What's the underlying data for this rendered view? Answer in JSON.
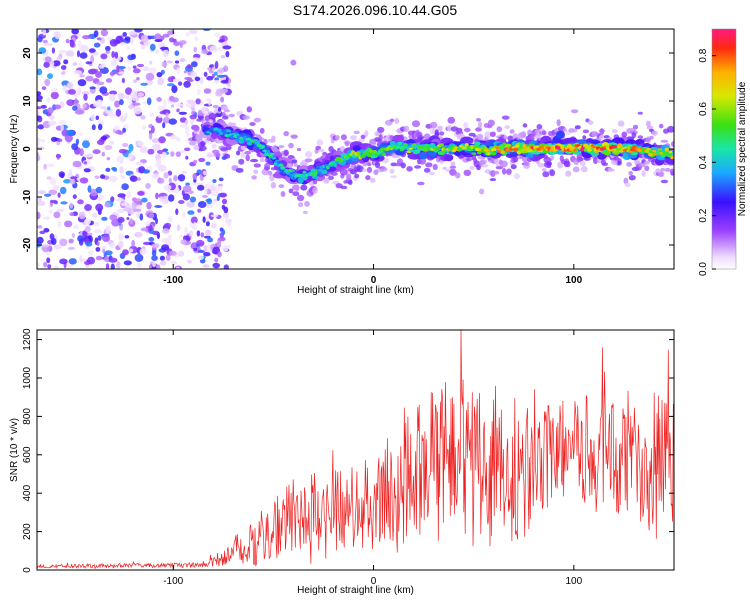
{
  "title": "S174.2026.096.10.44.G05",
  "colors": {
    "snr_line": "#ee2222",
    "axis": "#000000",
    "background": "#ffffff"
  },
  "chart_data": [
    {
      "type": "heatmap",
      "xlabel": "Height of straight line (km)",
      "ylabel": "Frequency (Hz)",
      "xlim": [
        -168,
        150
      ],
      "ylim": [
        -25,
        25
      ],
      "xticks": [
        -100,
        0,
        100
      ],
      "xtick_labels": [
        "-100",
        "0",
        "100"
      ],
      "yticks": [
        -20,
        -10,
        0,
        10,
        20
      ],
      "ytick_labels": [
        "-20",
        "-10",
        "0",
        "10",
        "20"
      ],
      "grid": false,
      "ridge": {
        "description_points_x": [
          -80,
          -65,
          -55,
          -45,
          -38,
          -30,
          -20,
          -10,
          0,
          10,
          30,
          50,
          70,
          90,
          110,
          130,
          148
        ],
        "frequency_y": [
          4,
          2.5,
          0,
          -4,
          -6,
          -5,
          -3,
          -1,
          -1,
          0.5,
          0,
          0,
          0,
          0.2,
          0.3,
          0,
          -1
        ],
        "peak_amplitude": [
          0.35,
          0.45,
          0.45,
          0.4,
          0.45,
          0.45,
          0.45,
          0.6,
          0.55,
          0.55,
          0.55,
          0.6,
          0.7,
          0.8,
          0.85,
          0.7,
          0.6
        ]
      },
      "noise_region_x": [
        -168,
        -80
      ],
      "colorbar": {
        "label": "Normalized spectral amplitude",
        "range": [
          0,
          0.9
        ],
        "ticks": [
          0,
          0.2,
          0.4,
          0.6,
          0.8
        ],
        "tick_labels": [
          "0.0",
          "0.2",
          "0.4",
          "0.6",
          "0.8"
        ]
      }
    },
    {
      "type": "line",
      "xlabel": "Height of straight line (km)",
      "ylabel": "SNR (10 * v/v)",
      "xlim": [
        -168,
        150
      ],
      "ylim": [
        0,
        1250
      ],
      "xticks": [
        -100,
        0,
        100
      ],
      "xtick_labels": [
        "-100",
        "0",
        "100"
      ],
      "yticks": [
        0,
        200,
        400,
        600,
        800,
        1000,
        1200
      ],
      "ytick_labels": [
        "0",
        "200",
        "400",
        "600",
        "800",
        "1000",
        "1200"
      ],
      "grid": false,
      "series": [
        {
          "name": "SNR",
          "envelope_x": [
            -168,
            -90,
            -80,
            -70,
            -60,
            -50,
            -40,
            -30,
            -20,
            -10,
            0,
            10,
            20,
            30,
            40,
            50,
            60,
            70,
            80,
            90,
            100,
            110,
            120,
            130,
            140,
            150
          ],
          "envelope_mean": [
            20,
            25,
            40,
            90,
            160,
            230,
            260,
            280,
            310,
            330,
            380,
            420,
            500,
            580,
            640,
            600,
            560,
            480,
            520,
            620,
            650,
            620,
            600,
            580,
            560,
            560
          ],
          "envelope_spread": [
            8,
            10,
            20,
            60,
            110,
            130,
            150,
            160,
            180,
            200,
            200,
            230,
            280,
            300,
            320,
            340,
            320,
            280,
            260,
            220,
            200,
            220,
            230,
            250,
            280,
            280
          ],
          "samples": 900
        }
      ]
    }
  ]
}
